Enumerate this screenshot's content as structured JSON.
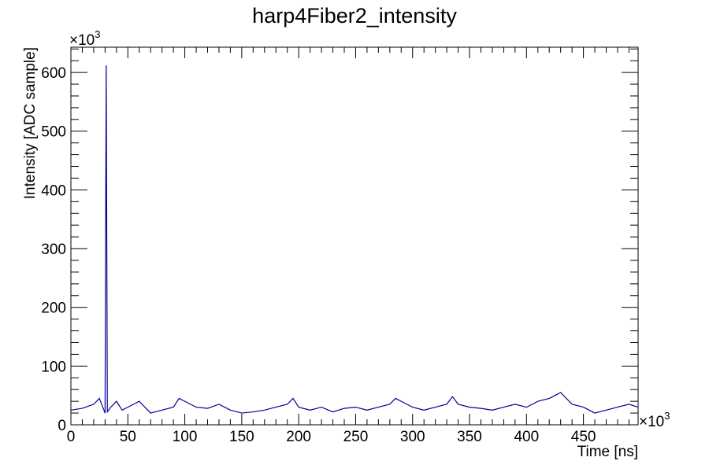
{
  "chart_data": {
    "type": "line",
    "title": "harp4Fiber2_intensity",
    "xlabel": "Time [ns]",
    "ylabel": "Intensity [ADC sample]",
    "x_multiplier": "×10",
    "x_multiplier_exp": "3",
    "y_multiplier": "×10",
    "y_multiplier_exp": "3",
    "xlim": [
      0,
      498
    ],
    "ylim": [
      0,
      643
    ],
    "x_ticks": [
      "0",
      "50",
      "100",
      "150",
      "200",
      "250",
      "300",
      "350",
      "400",
      "450"
    ],
    "y_ticks": [
      "0",
      "100",
      "200",
      "300",
      "400",
      "500",
      "600"
    ],
    "grid": false,
    "legend": "none",
    "series_color": "#000099",
    "series": [
      {
        "x": [
          0,
          10,
          20,
          25,
          30,
          31,
          32,
          35,
          40,
          45,
          50,
          55,
          60,
          70,
          80,
          90,
          95,
          100,
          105,
          110,
          120,
          130,
          140,
          150,
          160,
          170,
          180,
          190,
          195,
          200,
          210,
          220,
          230,
          240,
          250,
          260,
          270,
          280,
          285,
          290,
          300,
          310,
          320,
          330,
          335,
          340,
          350,
          360,
          370,
          380,
          390,
          400,
          410,
          420,
          425,
          430,
          435,
          440,
          450,
          460,
          470,
          480,
          490,
          498
        ],
        "values": [
          25,
          28,
          35,
          45,
          20,
          612,
          22,
          30,
          40,
          25,
          30,
          35,
          40,
          20,
          25,
          30,
          45,
          40,
          35,
          30,
          28,
          35,
          25,
          20,
          22,
          25,
          30,
          35,
          45,
          30,
          25,
          30,
          22,
          28,
          30,
          25,
          30,
          35,
          45,
          40,
          30,
          25,
          30,
          35,
          48,
          35,
          30,
          28,
          25,
          30,
          35,
          30,
          40,
          45,
          50,
          55,
          45,
          35,
          30,
          20,
          25,
          30,
          35,
          30
        ]
      }
    ]
  }
}
